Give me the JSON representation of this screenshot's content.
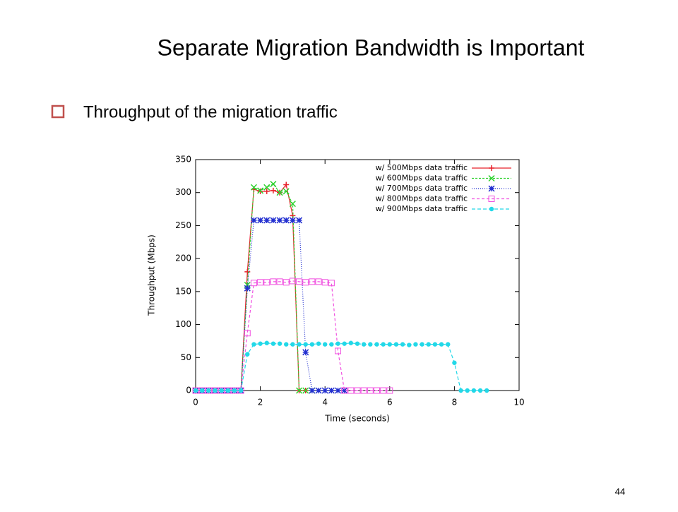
{
  "slide": {
    "title": "Separate Migration Bandwidth is Important",
    "bullet": "Throughput of the migration traffic",
    "page_number": "44"
  },
  "chart_data": {
    "type": "line",
    "x_label": "Time (seconds)",
    "y_label": "Throughput (Mbps)",
    "xlim": [
      0,
      10
    ],
    "xticks": [
      0,
      2,
      4,
      6,
      8,
      10
    ],
    "ylim": [
      0,
      350
    ],
    "yticks": [
      0,
      50,
      100,
      150,
      200,
      250,
      300,
      350
    ],
    "grid": false,
    "legend": "top-right",
    "series": [
      {
        "name": "w/ 500Mbps data traffic",
        "color": "#e8202a",
        "marker": "plus",
        "dash": "none",
        "x": [
          0,
          0.2,
          0.4,
          0.6,
          0.8,
          1.0,
          1.2,
          1.4,
          1.6,
          1.8,
          2.0,
          2.2,
          2.4,
          2.6,
          2.8,
          3.0,
          3.2,
          3.4
        ],
        "values": [
          0,
          0,
          0,
          0,
          0,
          0,
          0,
          0,
          180,
          305,
          302,
          302,
          303,
          300,
          312,
          265,
          0,
          0
        ]
      },
      {
        "name": "w/ 600Mbps data traffic",
        "color": "#2ed12e",
        "marker": "cross",
        "dash": "3,2",
        "x": [
          0,
          0.2,
          0.4,
          0.6,
          0.8,
          1.0,
          1.2,
          1.4,
          1.6,
          1.8,
          2.0,
          2.2,
          2.4,
          2.6,
          2.8,
          3.0,
          3.2,
          3.4,
          3.6
        ],
        "values": [
          0,
          0,
          0,
          0,
          0,
          0,
          0,
          0,
          160,
          308,
          303,
          308,
          313,
          300,
          302,
          283,
          0,
          0,
          0
        ]
      },
      {
        "name": "w/ 700Mbps data traffic",
        "color": "#2330d0",
        "marker": "star",
        "dash": "1,2",
        "x": [
          0,
          0.2,
          0.4,
          0.6,
          0.8,
          1.0,
          1.2,
          1.4,
          1.6,
          1.8,
          2.0,
          2.2,
          2.4,
          2.6,
          2.8,
          3.0,
          3.2,
          3.4,
          3.6,
          3.8,
          4.0,
          4.2,
          4.4,
          4.6
        ],
        "values": [
          0,
          0,
          0,
          0,
          0,
          0,
          0,
          0,
          155,
          258,
          258,
          258,
          258,
          258,
          258,
          258,
          258,
          58,
          0,
          0,
          0,
          0,
          0,
          0
        ]
      },
      {
        "name": "w/ 800Mbps data traffic",
        "color": "#f050e0",
        "marker": "square",
        "dash": "4,3",
        "x": [
          0,
          0.2,
          0.4,
          0.6,
          0.8,
          1.0,
          1.2,
          1.4,
          1.6,
          1.8,
          2.0,
          2.2,
          2.4,
          2.6,
          2.8,
          3.0,
          3.2,
          3.4,
          3.6,
          3.8,
          4.0,
          4.2,
          4.4,
          4.6,
          4.8,
          5.0,
          5.2,
          5.4,
          5.6,
          5.8,
          6.0
        ],
        "values": [
          0,
          0,
          0,
          0,
          0,
          0,
          0,
          0,
          87,
          163,
          164,
          164,
          165,
          165,
          164,
          166,
          165,
          164,
          165,
          165,
          164,
          163,
          60,
          0,
          0,
          0,
          0,
          0,
          0,
          0,
          0
        ]
      },
      {
        "name": "w/ 900Mbps data traffic",
        "color": "#22d8e8",
        "marker": "circle",
        "dash": "5,3",
        "x": [
          0,
          0.2,
          0.4,
          0.6,
          0.8,
          1.0,
          1.2,
          1.4,
          1.6,
          1.8,
          2.0,
          2.2,
          2.4,
          2.6,
          2.8,
          3.0,
          3.2,
          3.4,
          3.6,
          3.8,
          4.0,
          4.2,
          4.4,
          4.6,
          4.8,
          5.0,
          5.2,
          5.4,
          5.6,
          5.8,
          6.0,
          6.2,
          6.4,
          6.6,
          6.8,
          7.0,
          7.2,
          7.4,
          7.6,
          7.8,
          8.0,
          8.2,
          8.4,
          8.6,
          8.8,
          9.0
        ],
        "values": [
          0,
          0,
          0,
          0,
          0,
          0,
          0,
          0,
          55,
          70,
          71,
          72,
          71,
          71,
          70,
          70,
          70,
          70,
          70,
          71,
          70,
          70,
          71,
          71,
          72,
          71,
          70,
          70,
          70,
          70,
          70,
          70,
          70,
          69,
          70,
          70,
          70,
          70,
          70,
          70,
          42,
          0,
          0,
          0,
          0,
          0
        ]
      }
    ]
  }
}
